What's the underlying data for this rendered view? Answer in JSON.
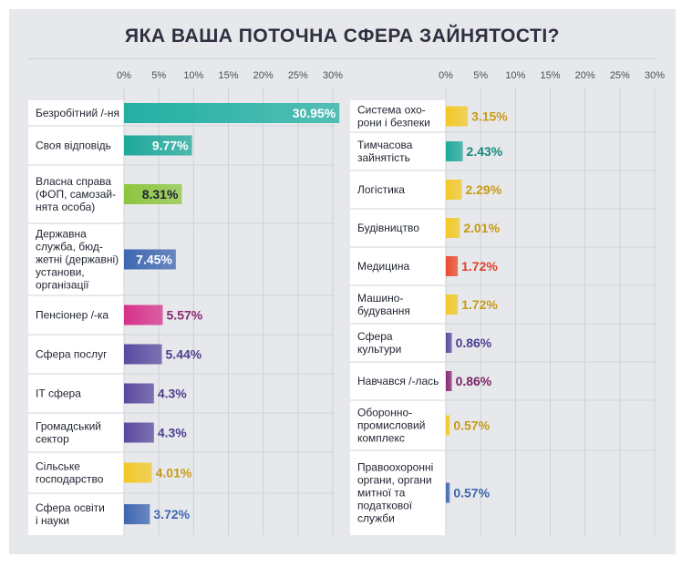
{
  "chart_data": {
    "type": "bar",
    "orientation": "horizontal",
    "title": "ЯКА ВАША ПОТОЧНА СФЕРА ЗАЙНЯТОСТІ?",
    "xlim": [
      0,
      30
    ],
    "tick_labels": [
      "0%",
      "5%",
      "10%",
      "15%",
      "20%",
      "25%",
      "30%"
    ],
    "grid": true,
    "panels": [
      {
        "name": "left",
        "categories": [
          {
            "label": [
              "Безробітний /-ня"
            ],
            "value": 30.95,
            "display": "30.95%",
            "color": "#22b0a3",
            "label_color": "#ffffff",
            "label_inside": true
          },
          {
            "label": [
              "Своя відповідь"
            ],
            "value": 9.77,
            "display": "9.77%",
            "color": "#1ea99a",
            "label_color": "#ffffff",
            "label_inside": true
          },
          {
            "label": [
              "Власна справа",
              "(ФОП, самозай-",
              "нята особа)"
            ],
            "value": 8.31,
            "display": "8.31%",
            "color": "#8cc63f",
            "label_color": "#1f2330",
            "label_inside": true
          },
          {
            "label": [
              "Державна",
              "служба, бюд-",
              "жетні (державні)",
              "установи,",
              "організації"
            ],
            "value": 7.45,
            "display": "7.45%",
            "color": "#3f67b1",
            "label_color": "#ffffff",
            "label_inside": true
          },
          {
            "label": [
              "Пенсіонер /-ка"
            ],
            "value": 5.57,
            "display": "5.57%",
            "color": "#d6318a",
            "label_color": "#8a2a74",
            "label_inside": false
          },
          {
            "label": [
              "Сфера послуг"
            ],
            "value": 5.44,
            "display": "5.44%",
            "color": "#5a4aa0",
            "label_color": "#4a3f8f",
            "label_inside": false
          },
          {
            "label": [
              "ІТ сфера"
            ],
            "value": 4.3,
            "display": "4.3%",
            "color": "#5a4aa0",
            "label_color": "#4a3f8f",
            "label_inside": false
          },
          {
            "label": [
              "Громадський",
              "сектор"
            ],
            "value": 4.3,
            "display": "4.3%",
            "color": "#5a4aa0",
            "label_color": "#4a3f8f",
            "label_inside": false
          },
          {
            "label": [
              "Сільське",
              "господарство"
            ],
            "value": 4.01,
            "display": "4.01%",
            "color": "#f2c927",
            "label_color": "#c79a14",
            "label_inside": false
          },
          {
            "label": [
              "Сфера освіти",
              "і науки"
            ],
            "value": 3.72,
            "display": "3.72%",
            "color": "#3f67b1",
            "label_color": "#3f67b1",
            "label_inside": false
          }
        ]
      },
      {
        "name": "right",
        "categories": [
          {
            "label": [
              "Система охо-",
              "рони і безпеки"
            ],
            "value": 3.15,
            "display": "3.15%",
            "color": "#f2c927",
            "label_color": "#c79a14",
            "label_inside": false
          },
          {
            "label": [
              "Тимчасова",
              "зайнятість"
            ],
            "value": 2.43,
            "display": "2.43%",
            "color": "#1ea99a",
            "label_color": "#17897d",
            "label_inside": false
          },
          {
            "label": [
              "Логістика"
            ],
            "value": 2.29,
            "display": "2.29%",
            "color": "#f2c927",
            "label_color": "#c79a14",
            "label_inside": false
          },
          {
            "label": [
              "Будівництво"
            ],
            "value": 2.01,
            "display": "2.01%",
            "color": "#f2c927",
            "label_color": "#c79a14",
            "label_inside": false
          },
          {
            "label": [
              "Медицина"
            ],
            "value": 1.72,
            "display": "1.72%",
            "color": "#ea4b2c",
            "label_color": "#e0402a",
            "label_inside": false
          },
          {
            "label": [
              "Машино-",
              "будування"
            ],
            "value": 1.72,
            "display": "1.72%",
            "color": "#f2c927",
            "label_color": "#c79a14",
            "label_inside": false
          },
          {
            "label": [
              "Сфера",
              "культури"
            ],
            "value": 0.86,
            "display": "0.86%",
            "color": "#5a4aa0",
            "label_color": "#4a3f8f",
            "label_inside": false
          },
          {
            "label": [
              "Навчався /-лась"
            ],
            "value": 0.86,
            "display": "0.86%",
            "color": "#8a2a74",
            "label_color": "#7a2466",
            "label_inside": false
          },
          {
            "label": [
              "Оборонно-",
              "промисловий",
              "комплекс"
            ],
            "value": 0.57,
            "display": "0.57%",
            "color": "#f2c927",
            "label_color": "#c79a14",
            "label_inside": false
          },
          {
            "label": [
              "Правоохоронні",
              "органи, органи",
              "митної та",
              "податкової",
              "служби"
            ],
            "value": 0.57,
            "display": "0.57%",
            "color": "#3f67b1",
            "label_color": "#3f67b1",
            "label_inside": false
          }
        ]
      }
    ]
  }
}
